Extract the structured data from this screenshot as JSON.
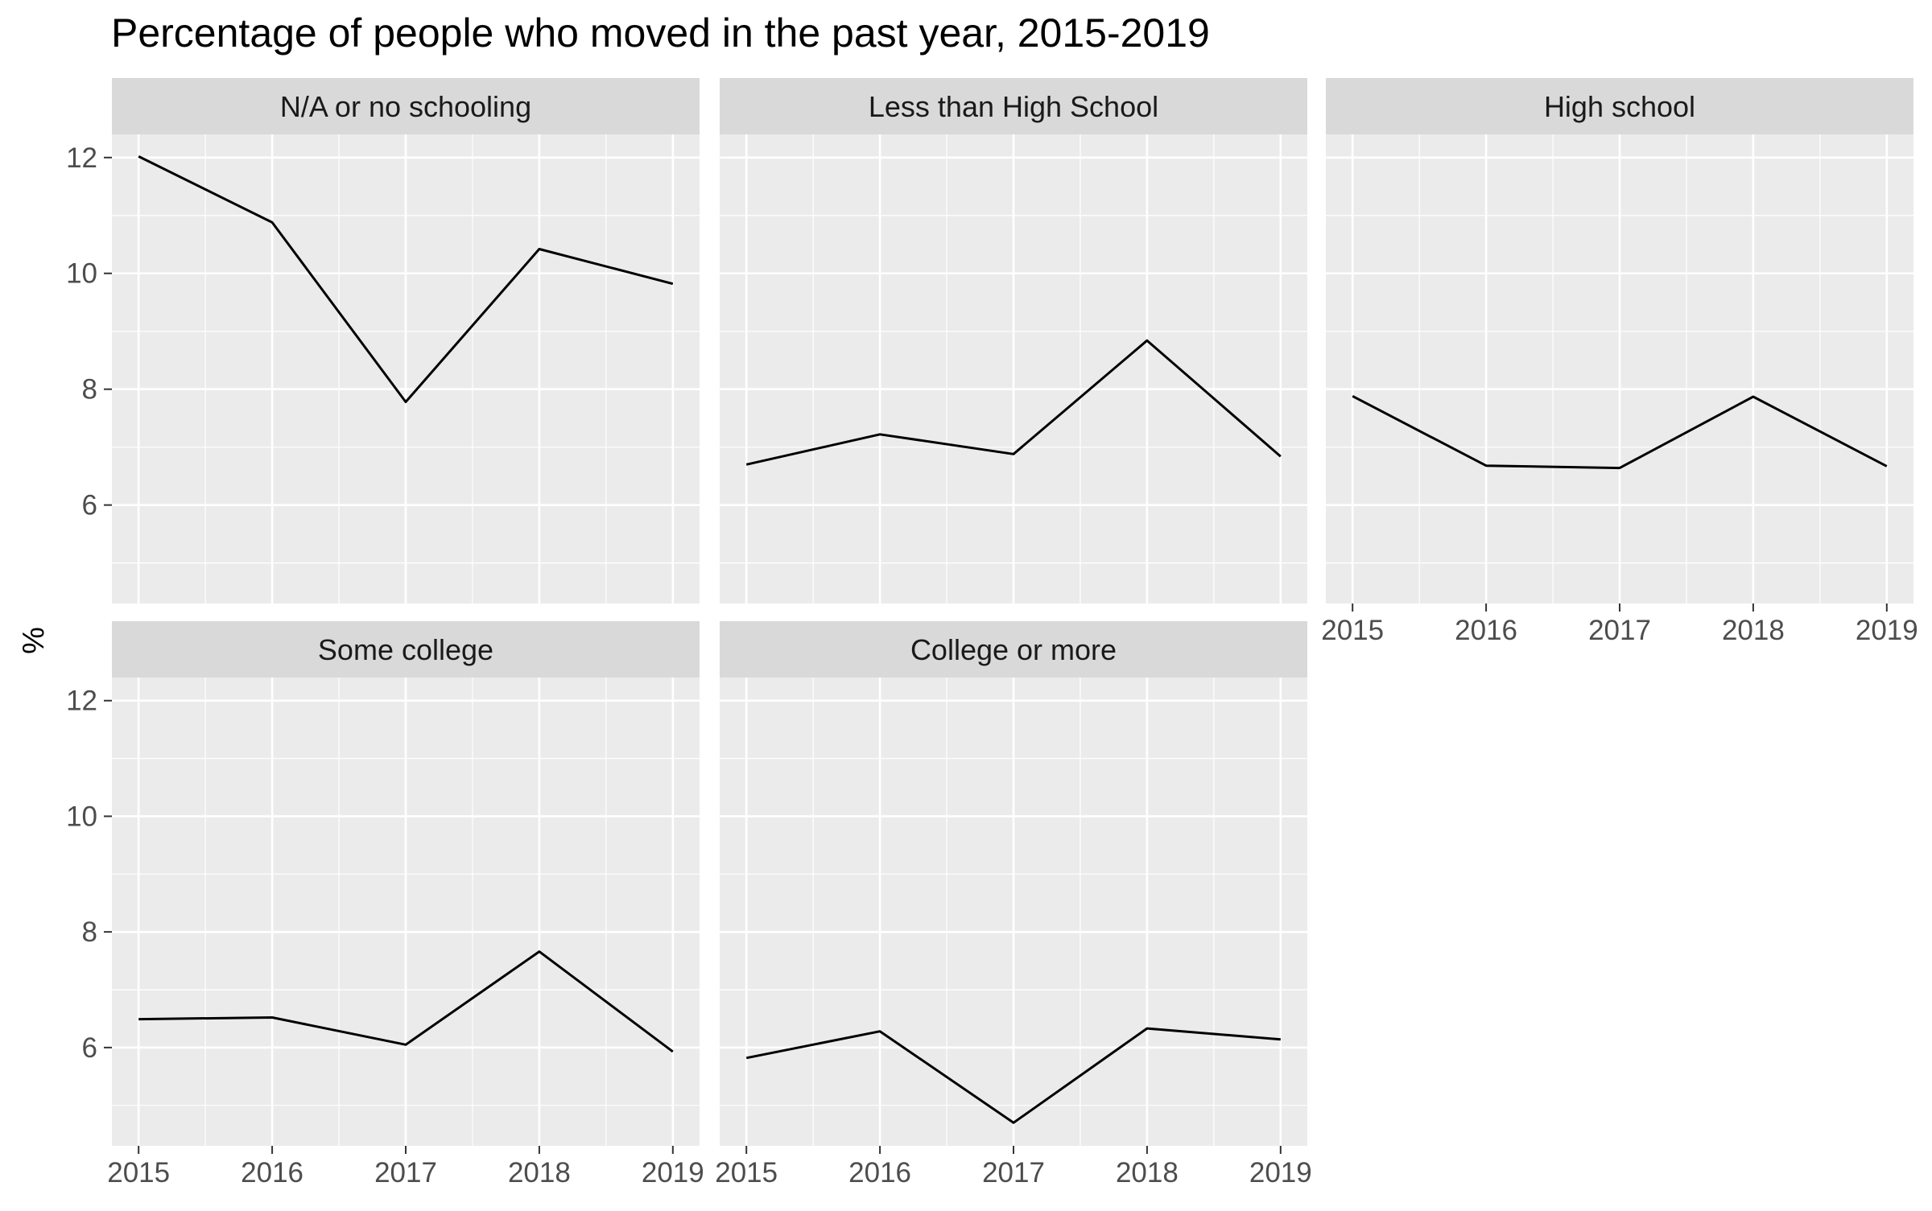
{
  "chart_data": {
    "type": "line",
    "title": "Percentage of people who moved in the past year, 2015-2019",
    "xlabel": "",
    "ylabel": "%",
    "x": [
      2015,
      2016,
      2017,
      2018,
      2019
    ],
    "x_ticks": [
      "2015",
      "2016",
      "2017",
      "2018",
      "2019"
    ],
    "y_ticks": [
      "6",
      "8",
      "10",
      "12"
    ],
    "ylim": [
      4.3,
      12.4
    ],
    "grid": true,
    "legend": "none",
    "colors": {
      "panel_background": "#ebebeb",
      "strip_background": "#d9d9d9",
      "grid_major": "#ffffff",
      "line": "#000000",
      "tick_text": "#4d4d4d",
      "text": "#1a1a1a"
    },
    "facets": [
      {
        "name": "N/A or no schooling",
        "values": [
          12.02,
          10.88,
          7.78,
          10.42,
          9.82
        ]
      },
      {
        "name": "Less than High School",
        "values": [
          6.7,
          7.22,
          6.88,
          8.84,
          6.84
        ]
      },
      {
        "name": "High school",
        "values": [
          7.88,
          6.68,
          6.64,
          7.87,
          6.67
        ]
      },
      {
        "name": "Some college",
        "values": [
          6.49,
          6.52,
          6.05,
          7.66,
          5.93
        ]
      },
      {
        "name": "College or more",
        "values": [
          5.82,
          6.28,
          4.7,
          6.33,
          6.14
        ]
      }
    ]
  }
}
